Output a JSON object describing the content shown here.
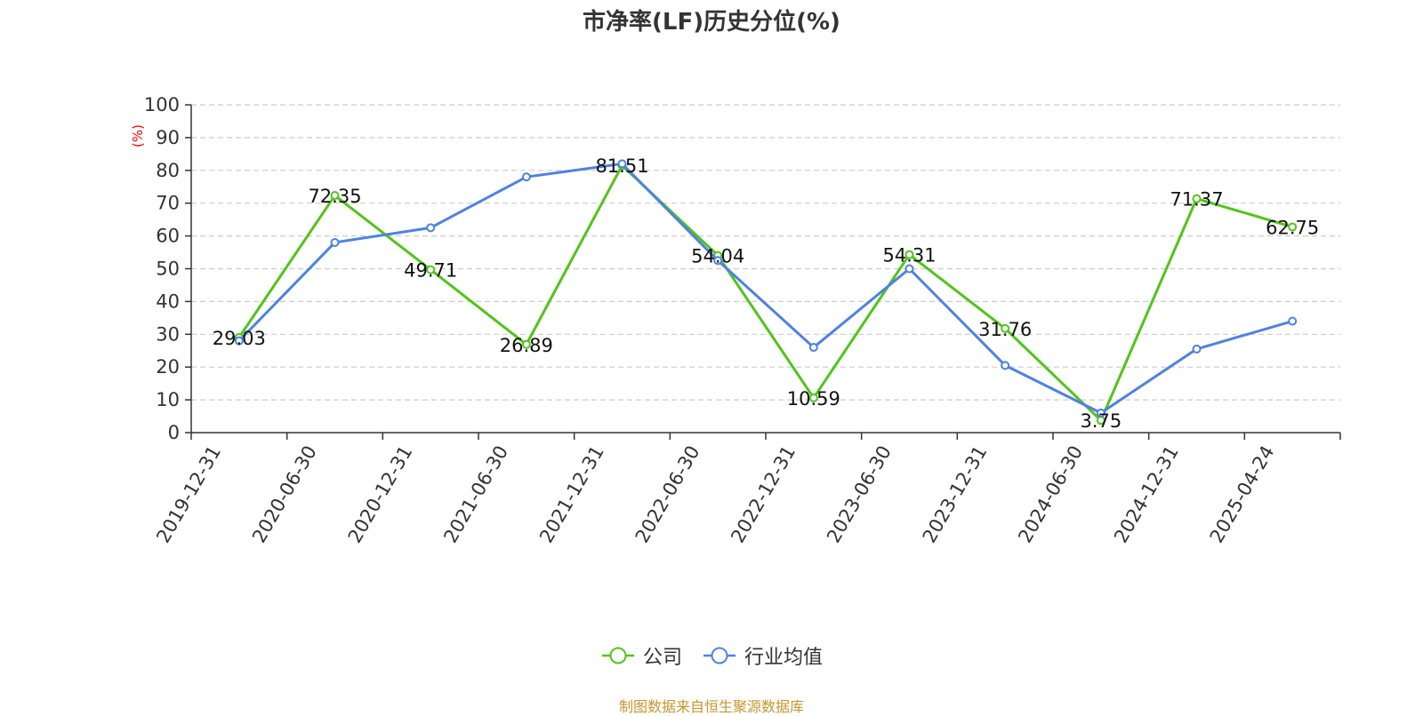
{
  "chart_data": {
    "type": "line",
    "title": "市净率(LF)历史分位(%)",
    "ylabel": "(%)",
    "xlabel": "",
    "ylim": [
      0,
      100
    ],
    "yticks": [
      0,
      10,
      20,
      30,
      40,
      50,
      60,
      70,
      80,
      90,
      100
    ],
    "grid": true,
    "legend_position": "bottom",
    "categories": [
      "2019-12-31",
      "2020-06-30",
      "2020-12-31",
      "2021-06-30",
      "2021-12-31",
      "2022-06-30",
      "2022-12-31",
      "2023-06-30",
      "2023-12-31",
      "2024-06-30",
      "2024-12-31",
      "2025-04-24"
    ],
    "series": [
      {
        "name": "公司",
        "color": "#52c41a",
        "values": [
          29.03,
          72.35,
          49.71,
          26.89,
          81.51,
          54.04,
          10.59,
          54.31,
          31.76,
          3.75,
          71.37,
          62.75
        ],
        "labels": [
          "29.03",
          "72.35",
          "49.71",
          "26.89",
          "81.51",
          "54.04",
          "10.59",
          "54.31",
          "31.76",
          "3.75",
          "71.37",
          "62.75"
        ]
      },
      {
        "name": "行业均值",
        "color": "#4e82e0",
        "values": [
          28.0,
          58.0,
          62.5,
          78.0,
          82.0,
          52.5,
          26.0,
          50.0,
          20.5,
          6.0,
          25.5,
          34.0
        ]
      }
    ]
  },
  "source_text": "制图数据来自恒生聚源数据库",
  "colors": {
    "source": "#c8962e",
    "axis_label": "#ff0000",
    "grid": "#cccccc"
  }
}
